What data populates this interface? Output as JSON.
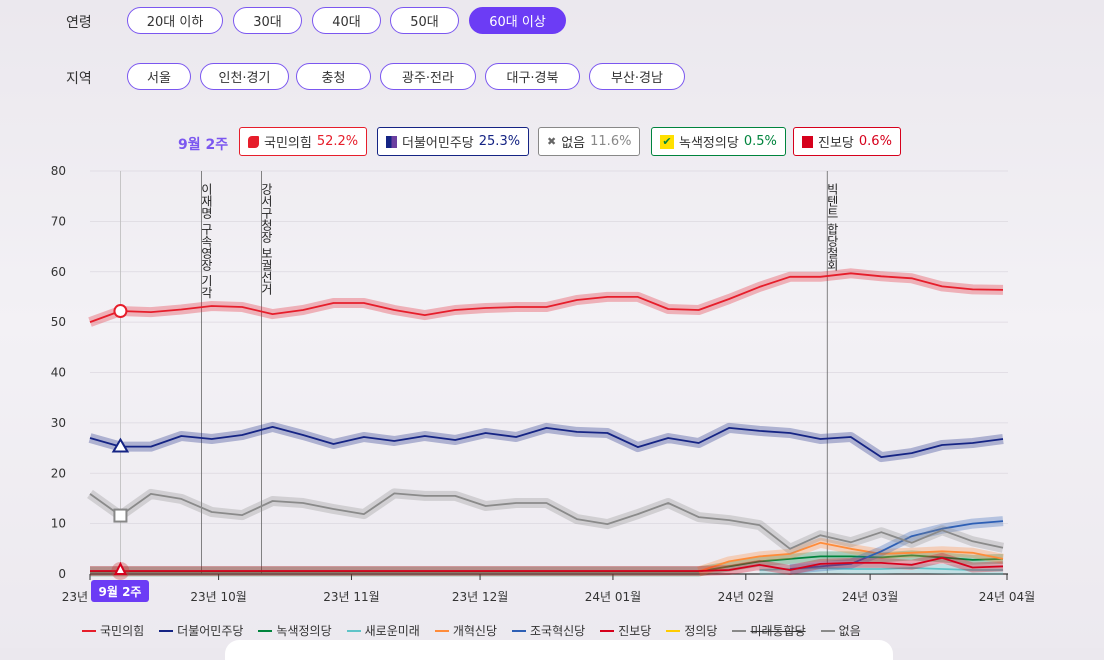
{
  "filters": {
    "age": {
      "label": "연령",
      "options": [
        "20대 이하",
        "30대",
        "40대",
        "50대",
        "60대 이상"
      ],
      "selected": "60대 이상"
    },
    "region": {
      "label": "지역",
      "options": [
        "서울",
        "인천·경기",
        "충청",
        "광주·전라",
        "대구·경북",
        "부산·경남"
      ]
    }
  },
  "summary": {
    "week": "9월 2주",
    "badges": [
      {
        "party": "국민의힘",
        "value": "52.2%",
        "color": "#e61e2b",
        "icon": "ppp-logo-icon"
      },
      {
        "party": "더불어민주당",
        "value": "25.3%",
        "color": "#152484",
        "icon": "democratic-logo-icon"
      },
      {
        "party": "없음",
        "value": "11.6%",
        "color": "#888888",
        "icon": "x-icon"
      },
      {
        "party": "녹색정의당",
        "value": "0.5%",
        "color": "#00843d",
        "icon": "check-logo-icon"
      },
      {
        "party": "진보당",
        "value": "0.6%",
        "color": "#d6001c",
        "icon": "flag-logo-icon"
      }
    ]
  },
  "chart_data": {
    "type": "line",
    "ylim": [
      0,
      80
    ],
    "yticks": [
      0,
      10,
      20,
      30,
      40,
      50,
      60,
      70,
      80
    ],
    "x_start": "2023-09-01",
    "x_end": "2024-04-01",
    "xtick_labels": [
      "23년 09월",
      "23년 10월",
      "23년 11월",
      "23년 12월",
      "24년 01월",
      "24년 02월",
      "24년 03월",
      "24년 04월"
    ],
    "grid": true,
    "legend_position": "bottom",
    "highlight": {
      "label": "9월 2주",
      "index": 1
    },
    "annotations": [
      {
        "date": "2023-09-27",
        "text": "이재명 구속영장 기각"
      },
      {
        "date": "2023-10-11",
        "text": "강서구청장 보궐선거"
      },
      {
        "date": "2024-02-20",
        "text": "빅텐트 합당철회"
      }
    ],
    "x_label": "weekly",
    "series": [
      {
        "name": "국민의힘",
        "color": "#e61e2b",
        "values": [
          50,
          52.2,
          52,
          52.5,
          53.2,
          53,
          51.6,
          52.4,
          53.8,
          53.8,
          52.4,
          51.4,
          52.4,
          52.8,
          53,
          53,
          54.4,
          55,
          55,
          52.6,
          52.4,
          54.6,
          57,
          59,
          59,
          59.7,
          59.1,
          58.7,
          57.1,
          56.5,
          56.4
        ]
      },
      {
        "name": "더불어민주당",
        "color": "#152484",
        "values": [
          27,
          25.3,
          25.3,
          27.4,
          26.8,
          27.6,
          29.2,
          27.6,
          25.8,
          27.2,
          26.4,
          27.4,
          26.6,
          28,
          27.2,
          29,
          28.2,
          28,
          25.2,
          27,
          26,
          29,
          28.4,
          28,
          26.8,
          27.2,
          23.2,
          24,
          25.6,
          26,
          26.8
        ]
      },
      {
        "name": "녹색정의당",
        "color": "#00843d",
        "values": [
          0.5,
          0.5,
          0.5,
          0.5,
          0.5,
          0.5,
          0.5,
          0.5,
          0.5,
          0.5,
          0.5,
          0.5,
          0.5,
          0.5,
          0.5,
          0.5,
          0.5,
          0.5,
          0.5,
          0.5,
          0.5,
          1.5,
          2.5,
          3,
          3.5,
          3.5,
          3.3,
          3.7,
          3.3,
          2.8,
          3
        ]
      },
      {
        "name": "새로운미래",
        "color": "#5fc4c8",
        "values": [
          null,
          null,
          null,
          null,
          null,
          null,
          null,
          null,
          null,
          null,
          null,
          null,
          null,
          null,
          null,
          null,
          null,
          null,
          null,
          null,
          null,
          null,
          0.8,
          1,
          1.2,
          1,
          1,
          1.2,
          1,
          0.8,
          0.8
        ]
      },
      {
        "name": "개혁신당",
        "color": "#ff8c3a",
        "values": [
          null,
          null,
          null,
          null,
          null,
          null,
          null,
          null,
          null,
          null,
          null,
          null,
          null,
          null,
          null,
          null,
          null,
          null,
          null,
          null,
          0.5,
          2.5,
          3.5,
          4,
          6.2,
          5,
          4,
          4.2,
          4.5,
          4.2,
          3
        ]
      },
      {
        "name": "조국혁신당",
        "color": "#2d5fb5",
        "values": [
          null,
          null,
          null,
          null,
          null,
          null,
          null,
          null,
          null,
          null,
          null,
          null,
          null,
          null,
          null,
          null,
          null,
          null,
          null,
          null,
          null,
          null,
          null,
          1,
          1.5,
          2,
          4.5,
          7.5,
          9,
          10,
          10.5
        ]
      },
      {
        "name": "진보당",
        "color": "#d6001c",
        "values": [
          0.6,
          0.6,
          0.6,
          0.6,
          0.6,
          0.6,
          0.6,
          0.6,
          0.6,
          0.6,
          0.6,
          0.6,
          0.6,
          0.6,
          0.6,
          0.6,
          0.6,
          0.6,
          0.6,
          0.6,
          0.6,
          0.8,
          1.8,
          0.8,
          2,
          2.2,
          2.2,
          1.8,
          3.2,
          1.3,
          1.5
        ]
      },
      {
        "name": "정의당",
        "color": "#ffcc00",
        "values": []
      },
      {
        "name": "미래통합당",
        "color": "#888888",
        "values": [],
        "struck": true
      },
      {
        "name": "없음",
        "color": "#8a8a8a",
        "values": [
          15.9,
          11.6,
          15.9,
          14.9,
          12.3,
          11.7,
          14.5,
          14.1,
          12.9,
          11.9,
          16,
          15.5,
          15.5,
          13.5,
          14.1,
          14.1,
          10.9,
          9.9,
          11.9,
          14.1,
          11.3,
          10.7,
          9.7,
          5,
          7.7,
          6.3,
          8.3,
          6.2,
          8.7,
          6.5,
          5.2
        ]
      }
    ]
  }
}
